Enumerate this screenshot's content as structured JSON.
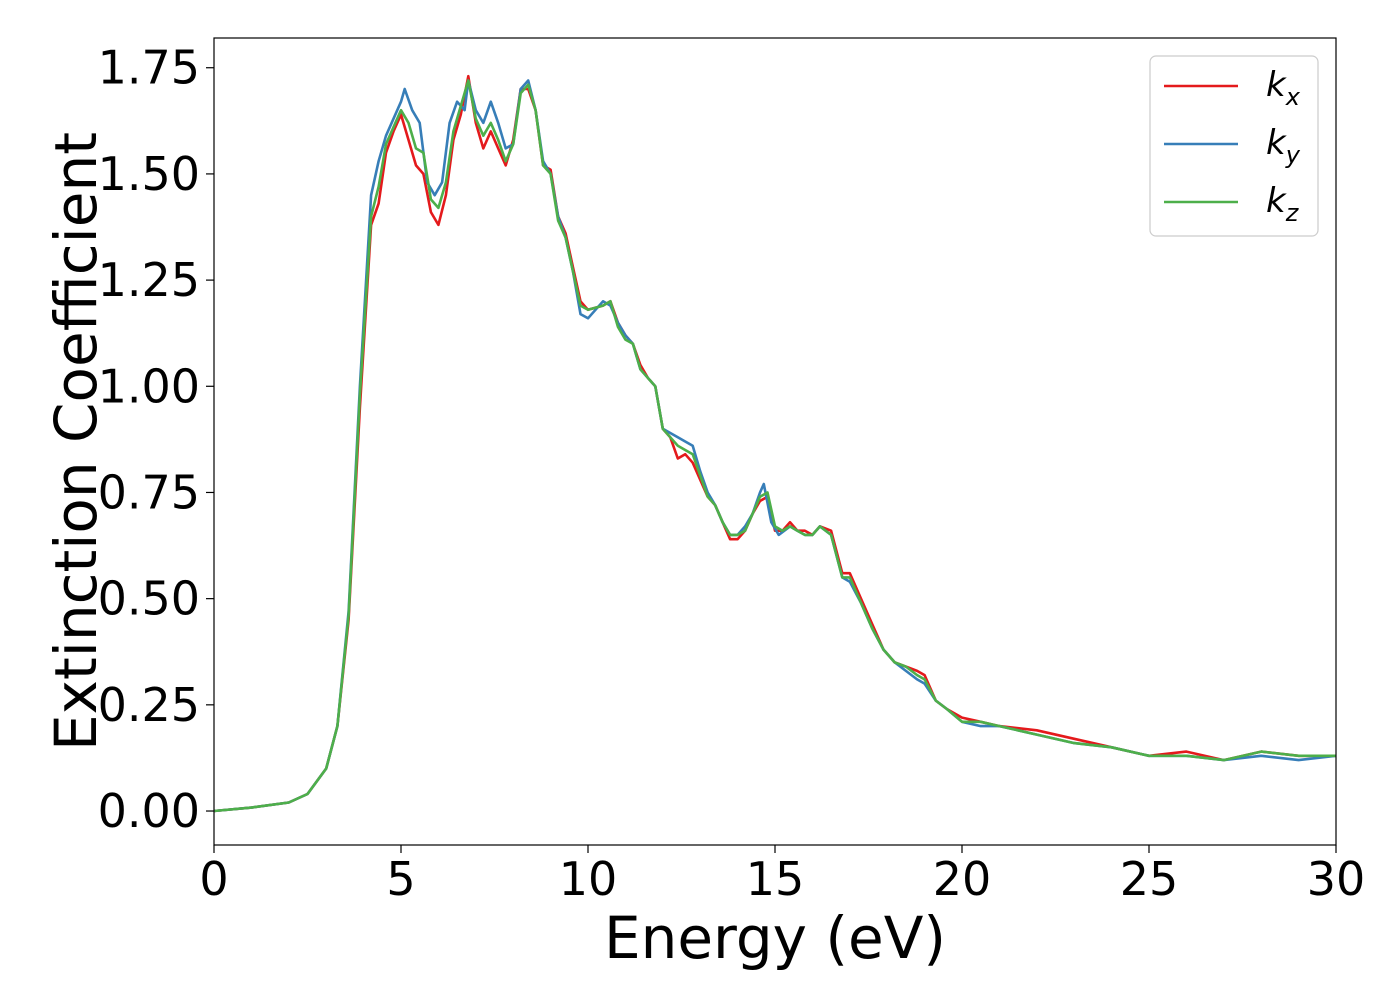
{
  "chart_data": {
    "type": "line",
    "xlabel": "Energy (eV)",
    "ylabel": "Extinction Coefficient",
    "xlim": [
      0,
      30
    ],
    "ylim": [
      -0.08,
      1.82
    ],
    "xticks": [
      0,
      5,
      10,
      15,
      20,
      25,
      30
    ],
    "xtick_labels": [
      "0",
      "5",
      "10",
      "15",
      "20",
      "25",
      "30"
    ],
    "yticks": [
      0.0,
      0.25,
      0.5,
      0.75,
      1.0,
      1.25,
      1.5,
      1.75
    ],
    "ytick_labels": [
      "0.00",
      "0.25",
      "0.50",
      "0.75",
      "1.00",
      "1.25",
      "1.50",
      "1.75"
    ],
    "grid": false,
    "legend_position": "top-right",
    "series": [
      {
        "name": "k_x",
        "label_main": "k",
        "label_sub": "x",
        "color": "#e41a1c",
        "points": [
          [
            0,
            0.0
          ],
          [
            1,
            0.008
          ],
          [
            2,
            0.02
          ],
          [
            2.5,
            0.04
          ],
          [
            3,
            0.1
          ],
          [
            3.3,
            0.2
          ],
          [
            3.6,
            0.45
          ],
          [
            3.9,
            0.95
          ],
          [
            4.2,
            1.38
          ],
          [
            4.4,
            1.43
          ],
          [
            4.6,
            1.55
          ],
          [
            4.8,
            1.6
          ],
          [
            5.0,
            1.64
          ],
          [
            5.2,
            1.58
          ],
          [
            5.4,
            1.52
          ],
          [
            5.6,
            1.5
          ],
          [
            5.8,
            1.41
          ],
          [
            6.0,
            1.38
          ],
          [
            6.2,
            1.45
          ],
          [
            6.4,
            1.58
          ],
          [
            6.6,
            1.64
          ],
          [
            6.8,
            1.73
          ],
          [
            7.0,
            1.62
          ],
          [
            7.2,
            1.56
          ],
          [
            7.4,
            1.6
          ],
          [
            7.6,
            1.56
          ],
          [
            7.8,
            1.52
          ],
          [
            8.0,
            1.58
          ],
          [
            8.2,
            1.7
          ],
          [
            8.4,
            1.7
          ],
          [
            8.6,
            1.65
          ],
          [
            8.8,
            1.52
          ],
          [
            9.0,
            1.51
          ],
          [
            9.2,
            1.4
          ],
          [
            9.4,
            1.36
          ],
          [
            9.6,
            1.28
          ],
          [
            9.8,
            1.2
          ],
          [
            10.0,
            1.18
          ],
          [
            10.4,
            1.19
          ],
          [
            10.6,
            1.2
          ],
          [
            10.8,
            1.15
          ],
          [
            11.0,
            1.12
          ],
          [
            11.2,
            1.1
          ],
          [
            11.4,
            1.05
          ],
          [
            11.6,
            1.02
          ],
          [
            11.8,
            1.0
          ],
          [
            12.0,
            0.9
          ],
          [
            12.2,
            0.88
          ],
          [
            12.4,
            0.83
          ],
          [
            12.6,
            0.84
          ],
          [
            12.8,
            0.82
          ],
          [
            13.0,
            0.78
          ],
          [
            13.2,
            0.74
          ],
          [
            13.4,
            0.72
          ],
          [
            13.6,
            0.68
          ],
          [
            13.8,
            0.64
          ],
          [
            14.0,
            0.64
          ],
          [
            14.2,
            0.66
          ],
          [
            14.4,
            0.7
          ],
          [
            14.6,
            0.73
          ],
          [
            14.8,
            0.74
          ],
          [
            15.0,
            0.66
          ],
          [
            15.2,
            0.66
          ],
          [
            15.4,
            0.68
          ],
          [
            15.6,
            0.66
          ],
          [
            15.8,
            0.66
          ],
          [
            16.0,
            0.65
          ],
          [
            16.2,
            0.67
          ],
          [
            16.5,
            0.66
          ],
          [
            16.8,
            0.56
          ],
          [
            17.0,
            0.56
          ],
          [
            17.3,
            0.5
          ],
          [
            17.6,
            0.44
          ],
          [
            17.9,
            0.38
          ],
          [
            18.2,
            0.35
          ],
          [
            18.5,
            0.34
          ],
          [
            18.8,
            0.33
          ],
          [
            19.0,
            0.32
          ],
          [
            19.3,
            0.26
          ],
          [
            19.6,
            0.24
          ],
          [
            20.0,
            0.22
          ],
          [
            20.5,
            0.21
          ],
          [
            21,
            0.2
          ],
          [
            22,
            0.19
          ],
          [
            23,
            0.17
          ],
          [
            24,
            0.15
          ],
          [
            25,
            0.13
          ],
          [
            26,
            0.14
          ],
          [
            27,
            0.12
          ],
          [
            28,
            0.14
          ],
          [
            29,
            0.13
          ],
          [
            30,
            0.13
          ]
        ]
      },
      {
        "name": "k_y",
        "label_main": "k",
        "label_sub": "y",
        "color": "#377eb8",
        "points": [
          [
            0,
            0.0
          ],
          [
            1,
            0.008
          ],
          [
            2,
            0.02
          ],
          [
            2.5,
            0.04
          ],
          [
            3,
            0.1
          ],
          [
            3.3,
            0.2
          ],
          [
            3.6,
            0.47
          ],
          [
            3.9,
            1.0
          ],
          [
            4.2,
            1.45
          ],
          [
            4.4,
            1.53
          ],
          [
            4.6,
            1.59
          ],
          [
            4.8,
            1.63
          ],
          [
            5.0,
            1.67
          ],
          [
            5.1,
            1.7
          ],
          [
            5.3,
            1.65
          ],
          [
            5.5,
            1.62
          ],
          [
            5.7,
            1.48
          ],
          [
            5.9,
            1.45
          ],
          [
            6.1,
            1.48
          ],
          [
            6.3,
            1.62
          ],
          [
            6.5,
            1.67
          ],
          [
            6.7,
            1.65
          ],
          [
            6.8,
            1.72
          ],
          [
            7.0,
            1.65
          ],
          [
            7.2,
            1.62
          ],
          [
            7.4,
            1.67
          ],
          [
            7.6,
            1.62
          ],
          [
            7.8,
            1.56
          ],
          [
            8.0,
            1.57
          ],
          [
            8.2,
            1.7
          ],
          [
            8.4,
            1.72
          ],
          [
            8.6,
            1.65
          ],
          [
            8.8,
            1.53
          ],
          [
            9.0,
            1.5
          ],
          [
            9.2,
            1.4
          ],
          [
            9.4,
            1.35
          ],
          [
            9.6,
            1.27
          ],
          [
            9.8,
            1.17
          ],
          [
            10.0,
            1.16
          ],
          [
            10.4,
            1.2
          ],
          [
            10.6,
            1.19
          ],
          [
            10.8,
            1.15
          ],
          [
            11.0,
            1.12
          ],
          [
            11.2,
            1.1
          ],
          [
            11.4,
            1.04
          ],
          [
            11.6,
            1.02
          ],
          [
            11.8,
            1.0
          ],
          [
            12.0,
            0.9
          ],
          [
            12.2,
            0.89
          ],
          [
            12.4,
            0.88
          ],
          [
            12.6,
            0.87
          ],
          [
            12.8,
            0.86
          ],
          [
            13.0,
            0.8
          ],
          [
            13.2,
            0.75
          ],
          [
            13.4,
            0.72
          ],
          [
            13.6,
            0.68
          ],
          [
            13.8,
            0.65
          ],
          [
            14.0,
            0.65
          ],
          [
            14.2,
            0.67
          ],
          [
            14.4,
            0.7
          ],
          [
            14.6,
            0.75
          ],
          [
            14.7,
            0.77
          ],
          [
            14.9,
            0.68
          ],
          [
            15.1,
            0.65
          ],
          [
            15.4,
            0.67
          ],
          [
            15.6,
            0.66
          ],
          [
            15.8,
            0.65
          ],
          [
            16.0,
            0.65
          ],
          [
            16.2,
            0.67
          ],
          [
            16.5,
            0.65
          ],
          [
            16.8,
            0.55
          ],
          [
            17.0,
            0.54
          ],
          [
            17.3,
            0.49
          ],
          [
            17.6,
            0.43
          ],
          [
            17.9,
            0.38
          ],
          [
            18.2,
            0.35
          ],
          [
            18.5,
            0.33
          ],
          [
            18.8,
            0.31
          ],
          [
            19.0,
            0.3
          ],
          [
            19.3,
            0.26
          ],
          [
            19.6,
            0.24
          ],
          [
            20.0,
            0.21
          ],
          [
            20.5,
            0.2
          ],
          [
            21,
            0.2
          ],
          [
            22,
            0.18
          ],
          [
            23,
            0.16
          ],
          [
            24,
            0.15
          ],
          [
            25,
            0.13
          ],
          [
            26,
            0.13
          ],
          [
            27,
            0.12
          ],
          [
            28,
            0.13
          ],
          [
            29,
            0.12
          ],
          [
            30,
            0.13
          ]
        ]
      },
      {
        "name": "k_z",
        "label_main": "k",
        "label_sub": "z",
        "color": "#4daf4a",
        "points": [
          [
            0,
            0.0
          ],
          [
            1,
            0.008
          ],
          [
            2,
            0.02
          ],
          [
            2.5,
            0.04
          ],
          [
            3,
            0.1
          ],
          [
            3.3,
            0.2
          ],
          [
            3.6,
            0.46
          ],
          [
            3.9,
            0.98
          ],
          [
            4.2,
            1.4
          ],
          [
            4.4,
            1.47
          ],
          [
            4.6,
            1.57
          ],
          [
            4.8,
            1.61
          ],
          [
            5.0,
            1.65
          ],
          [
            5.2,
            1.62
          ],
          [
            5.4,
            1.56
          ],
          [
            5.6,
            1.55
          ],
          [
            5.8,
            1.44
          ],
          [
            6.0,
            1.42
          ],
          [
            6.2,
            1.48
          ],
          [
            6.4,
            1.6
          ],
          [
            6.6,
            1.66
          ],
          [
            6.8,
            1.72
          ],
          [
            7.0,
            1.63
          ],
          [
            7.2,
            1.59
          ],
          [
            7.4,
            1.62
          ],
          [
            7.6,
            1.58
          ],
          [
            7.8,
            1.53
          ],
          [
            8.0,
            1.57
          ],
          [
            8.2,
            1.69
          ],
          [
            8.4,
            1.71
          ],
          [
            8.6,
            1.65
          ],
          [
            8.8,
            1.52
          ],
          [
            9.0,
            1.5
          ],
          [
            9.2,
            1.39
          ],
          [
            9.4,
            1.35
          ],
          [
            9.6,
            1.27
          ],
          [
            9.8,
            1.19
          ],
          [
            10.0,
            1.18
          ],
          [
            10.4,
            1.19
          ],
          [
            10.6,
            1.2
          ],
          [
            10.8,
            1.14
          ],
          [
            11.0,
            1.11
          ],
          [
            11.2,
            1.1
          ],
          [
            11.4,
            1.04
          ],
          [
            11.6,
            1.02
          ],
          [
            11.8,
            1.0
          ],
          [
            12.0,
            0.9
          ],
          [
            12.2,
            0.88
          ],
          [
            12.4,
            0.86
          ],
          [
            12.6,
            0.85
          ],
          [
            12.8,
            0.84
          ],
          [
            13.0,
            0.79
          ],
          [
            13.2,
            0.74
          ],
          [
            13.4,
            0.72
          ],
          [
            13.6,
            0.68
          ],
          [
            13.8,
            0.65
          ],
          [
            14.0,
            0.65
          ],
          [
            14.2,
            0.66
          ],
          [
            14.4,
            0.7
          ],
          [
            14.6,
            0.74
          ],
          [
            14.8,
            0.75
          ],
          [
            15.0,
            0.67
          ],
          [
            15.2,
            0.66
          ],
          [
            15.4,
            0.67
          ],
          [
            15.6,
            0.66
          ],
          [
            15.8,
            0.65
          ],
          [
            16.0,
            0.65
          ],
          [
            16.2,
            0.67
          ],
          [
            16.5,
            0.65
          ],
          [
            16.8,
            0.55
          ],
          [
            17.0,
            0.55
          ],
          [
            17.3,
            0.49
          ],
          [
            17.6,
            0.43
          ],
          [
            17.9,
            0.38
          ],
          [
            18.2,
            0.35
          ],
          [
            18.5,
            0.34
          ],
          [
            18.8,
            0.32
          ],
          [
            19.0,
            0.31
          ],
          [
            19.3,
            0.26
          ],
          [
            19.6,
            0.24
          ],
          [
            20.0,
            0.21
          ],
          [
            20.5,
            0.21
          ],
          [
            21,
            0.2
          ],
          [
            22,
            0.18
          ],
          [
            23,
            0.16
          ],
          [
            24,
            0.15
          ],
          [
            25,
            0.13
          ],
          [
            26,
            0.13
          ],
          [
            27,
            0.12
          ],
          [
            28,
            0.14
          ],
          [
            29,
            0.13
          ],
          [
            30,
            0.13
          ]
        ]
      }
    ]
  }
}
